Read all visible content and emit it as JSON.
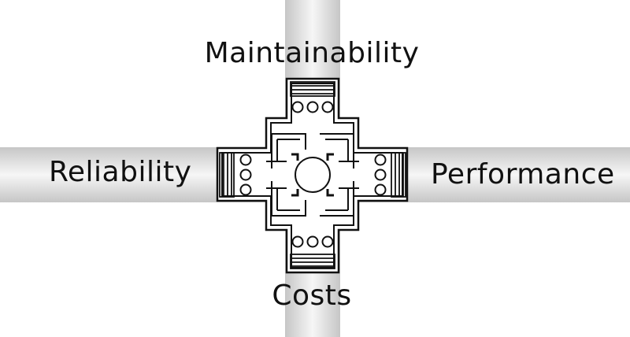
{
  "diagram": {
    "labels": {
      "top": "Maintainability",
      "left": "Reliability",
      "right": "Performance",
      "bottom": "Costs"
    },
    "colors": {
      "band_edge": "#c6c6c6",
      "band_center": "#f6f6f6",
      "stroke": "#111111",
      "fill": "#ffffff"
    },
    "icon": "cross-shaped-temple-floor-plan-icon"
  }
}
